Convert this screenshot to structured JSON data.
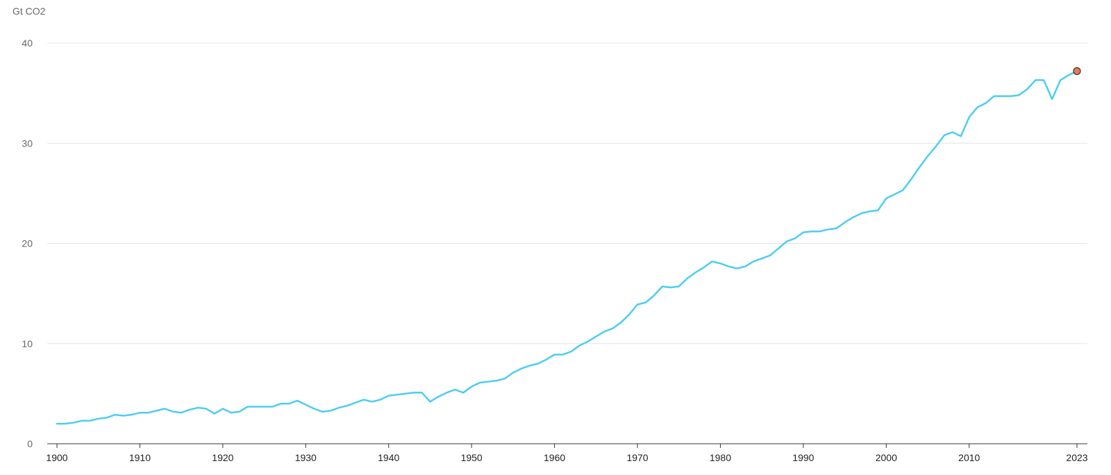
{
  "chart_data": {
    "type": "line",
    "title": "",
    "xlabel": "",
    "ylabel": "Gt CO2",
    "xlim": [
      1900,
      2023
    ],
    "ylim": [
      0,
      40
    ],
    "grid": true,
    "y_ticks": [
      "0",
      "10",
      "20",
      "30",
      "40"
    ],
    "x_ticks": [
      "1900",
      "1910",
      "1920",
      "1930",
      "1940",
      "1950",
      "1960",
      "1970",
      "1980",
      "1990",
      "2000",
      "2010",
      "2023"
    ],
    "line_color": "#4CCDF0",
    "marker_color": "#EE7A55",
    "highlight_point": {
      "x": 2023,
      "y": 37.2
    },
    "series": [
      {
        "x": [
          1900,
          1901,
          1902,
          1903,
          1904,
          1905,
          1906,
          1907,
          1908,
          1909,
          1910,
          1911,
          1912,
          1913,
          1914,
          1915,
          1916,
          1917,
          1918,
          1919,
          1920,
          1921,
          1922,
          1923,
          1924,
          1925,
          1926,
          1927,
          1928,
          1929,
          1930,
          1931,
          1932,
          1933,
          1934,
          1935,
          1936,
          1937,
          1938,
          1939,
          1940,
          1941,
          1942,
          1943,
          1944,
          1945,
          1946,
          1947,
          1948,
          1949,
          1950,
          1951,
          1952,
          1953,
          1954,
          1955,
          1956,
          1957,
          1958,
          1959,
          1960,
          1961,
          1962,
          1963,
          1964,
          1965,
          1966,
          1967,
          1968,
          1969,
          1970,
          1971,
          1972,
          1973,
          1974,
          1975,
          1976,
          1977,
          1978,
          1979,
          1980,
          1981,
          1982,
          1983,
          1984,
          1985,
          1986,
          1987,
          1988,
          1989,
          1990,
          1991,
          1992,
          1993,
          1994,
          1995,
          1996,
          1997,
          1998,
          1999,
          2000,
          2001,
          2002,
          2003,
          2004,
          2005,
          2006,
          2007,
          2008,
          2009,
          2010,
          2011,
          2012,
          2013,
          2014,
          2015,
          2016,
          2017,
          2018,
          2019,
          2020,
          2021,
          2022,
          2023
        ],
        "y": [
          2.0,
          2.0,
          2.1,
          2.3,
          2.3,
          2.5,
          2.6,
          2.9,
          2.8,
          2.9,
          3.1,
          3.1,
          3.3,
          3.5,
          3.2,
          3.1,
          3.4,
          3.6,
          3.5,
          3.0,
          3.5,
          3.1,
          3.2,
          3.7,
          3.7,
          3.7,
          3.7,
          4.0,
          4.0,
          4.3,
          3.9,
          3.5,
          3.2,
          3.3,
          3.6,
          3.8,
          4.1,
          4.4,
          4.2,
          4.4,
          4.8,
          4.9,
          5.0,
          5.1,
          5.1,
          4.2,
          4.7,
          5.1,
          5.4,
          5.1,
          5.7,
          6.1,
          6.2,
          6.3,
          6.5,
          7.1,
          7.5,
          7.8,
          8.0,
          8.4,
          8.9,
          8.9,
          9.2,
          9.8,
          10.2,
          10.7,
          11.2,
          11.5,
          12.1,
          12.9,
          13.9,
          14.1,
          14.8,
          15.7,
          15.6,
          15.7,
          16.5,
          17.1,
          17.6,
          18.2,
          18.0,
          17.7,
          17.5,
          17.7,
          18.2,
          18.5,
          18.8,
          19.5,
          20.2,
          20.5,
          21.1,
          21.2,
          21.2,
          21.4,
          21.5,
          22.1,
          22.6,
          23.0,
          23.2,
          23.3,
          24.5,
          24.9,
          25.3,
          26.4,
          27.6,
          28.7,
          29.7,
          30.8,
          31.1,
          30.7,
          32.6,
          33.6,
          34.0,
          34.7,
          34.7,
          34.7,
          34.8,
          35.4,
          36.3,
          36.3,
          34.4,
          36.3,
          36.8,
          37.2
        ]
      }
    ]
  }
}
